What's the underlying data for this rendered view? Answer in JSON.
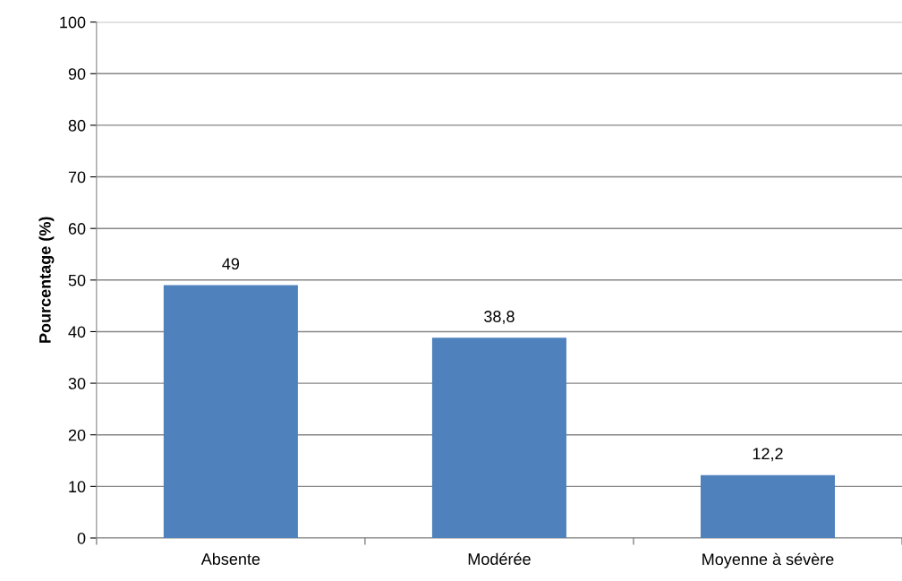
{
  "chart_data": {
    "type": "bar",
    "ylabel": "Pourcentage (%)",
    "categories": [
      "Absente",
      "Modérée",
      "Moyenne à sévère"
    ],
    "values": [
      49,
      38.8,
      12.2
    ],
    "value_labels": [
      "49",
      "38,8",
      "12,2"
    ],
    "color": "#4f81bd",
    "ylim": [
      0,
      100
    ],
    "yticks": [
      0,
      10,
      20,
      30,
      40,
      50,
      60,
      70,
      80,
      90,
      100
    ],
    "grid": "y",
    "legend": false
  }
}
